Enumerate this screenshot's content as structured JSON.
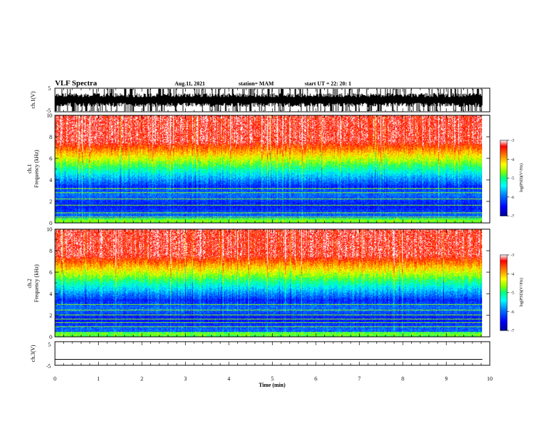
{
  "header": {
    "title": "VLF Spectra",
    "date": "Aug.11, 2021",
    "station": "station= MAM",
    "start_ut": "start  UT  =   22: 20: 1"
  },
  "colors": {
    "colormap": [
      "#00009a",
      "#0000ff",
      "#0080ff",
      "#00ffff",
      "#00ff80",
      "#80ff00",
      "#ffff00",
      "#ff8000",
      "#ff0000",
      "#ffffff"
    ],
    "waveform": "#000000"
  },
  "chart_data": [
    {
      "type": "line",
      "name": "ch.1 waveform",
      "ylabel": "ch.1(V)",
      "ylim": [
        -5,
        5
      ],
      "yticks": [
        "5",
        "-5"
      ],
      "description_of_signal": "dense noisy trace, spikes near full scale",
      "x_unit": "min",
      "xlim": [
        0,
        10
      ]
    },
    {
      "type": "heatmap",
      "name": "ch.1 spectrogram",
      "ylabel_top": "ch.1",
      "ylabel": "Frequency (kHz)",
      "ylim": [
        0,
        10
      ],
      "yticks": [
        "0",
        "2",
        "4",
        "6",
        "8",
        "10"
      ],
      "xlim": [
        0,
        10
      ],
      "data_end_min": 9.83,
      "colorbar": {
        "label": "log(PSD)(V²/Hz)",
        "ticks": [
          "-3",
          "-4",
          "-5",
          "-6",
          "-7"
        ],
        "range": [
          -7,
          -3
        ]
      },
      "lines_khz": [
        0.1,
        0.2,
        0.5,
        0.9,
        1.6,
        2.2,
        2.8,
        3.2
      ]
    },
    {
      "type": "heatmap",
      "name": "ch.2 spectrogram",
      "ylabel_top": "ch.2",
      "ylabel": "Frequency (kHz)",
      "ylim": [
        0,
        10
      ],
      "yticks": [
        "0",
        "2",
        "4",
        "6",
        "8",
        "10"
      ],
      "xlim": [
        0,
        10
      ],
      "data_end_min": 9.83,
      "colorbar": {
        "label": "log(PSD)(V²/Hz)",
        "ticks": [
          "-3",
          "-4",
          "-5",
          "-6",
          "-7"
        ],
        "range": [
          -7,
          -3
        ]
      },
      "lines_khz": [
        0.2,
        0.9,
        1.3,
        1.6,
        2.0,
        2.5,
        3.0
      ]
    },
    {
      "type": "line",
      "name": "ch.3 waveform",
      "ylabel": "ch.3(V)",
      "ylim": [
        -5,
        5
      ],
      "yticks": [
        "5",
        "-5"
      ],
      "constant_value": -2.5,
      "xlabel": "Time (min)",
      "xticks": [
        "0",
        "1",
        "2",
        "3",
        "4",
        "5",
        "6",
        "7",
        "8",
        "9",
        "10"
      ],
      "xlim": [
        0,
        10
      ],
      "data_end_min": 9.83
    }
  ]
}
